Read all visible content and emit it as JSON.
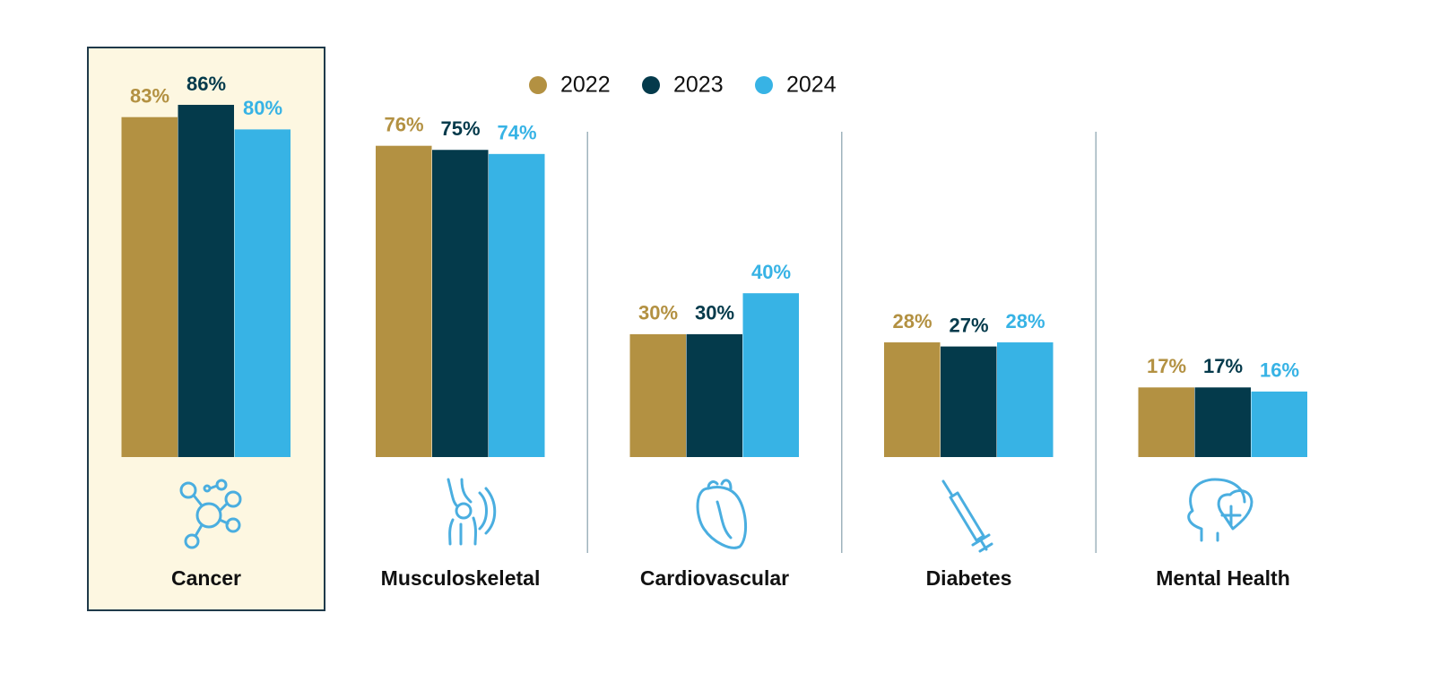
{
  "chart_data": {
    "type": "bar",
    "categories": [
      "Cancer",
      "Musculoskeletal",
      "Cardiovascular",
      "Diabetes",
      "Mental Health"
    ],
    "series": [
      {
        "name": "2022",
        "color": "#b39142",
        "values": [
          83,
          76,
          30,
          28,
          17
        ],
        "value_labels": [
          "83%",
          "76%",
          "30%",
          "28%",
          "17%"
        ]
      },
      {
        "name": "2023",
        "color": "#043a4b",
        "values": [
          86,
          75,
          30,
          27,
          17
        ],
        "value_labels": [
          "86%",
          "75%",
          "30%",
          "27%",
          "17%"
        ]
      },
      {
        "name": "2024",
        "color": "#37b3e5",
        "values": [
          80,
          74,
          40,
          28,
          16
        ],
        "value_labels": [
          "80%",
          "74%",
          "40%",
          "28%",
          "16%"
        ]
      }
    ],
    "highlight": "Cancer",
    "legend": "top"
  }
}
